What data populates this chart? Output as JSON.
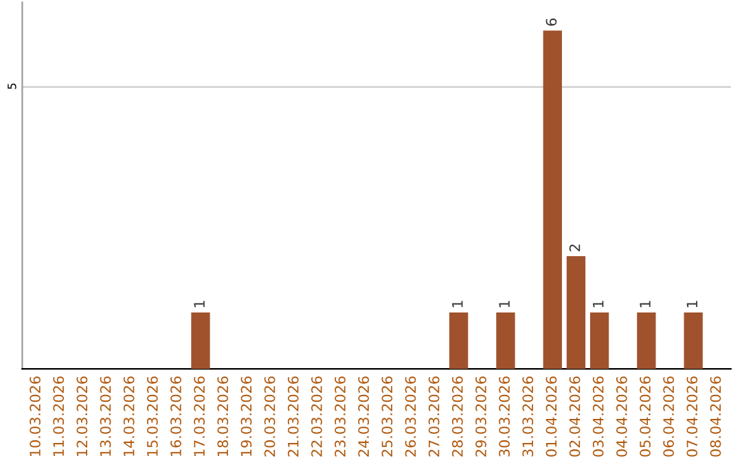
{
  "chart_data": {
    "type": "bar",
    "categories": [
      "10.03.2026",
      "11.03.2026",
      "12.03.2026",
      "13.03.2026",
      "14.03.2026",
      "15.03.2026",
      "16.03.2026",
      "17.03.2026",
      "18.03.2026",
      "19.03.2026",
      "20.03.2026",
      "21.03.2026",
      "22.03.2026",
      "23.03.2026",
      "24.03.2026",
      "25.03.2026",
      "26.03.2026",
      "27.03.2026",
      "28.03.2026",
      "29.03.2026",
      "30.03.2026",
      "31.03.2026",
      "01.04.2026",
      "02.04.2026",
      "03.04.2026",
      "04.04.2026",
      "05.04.2026",
      "06.04.2026",
      "07.04.2026",
      "08.04.2026"
    ],
    "values": [
      0,
      0,
      0,
      0,
      0,
      0,
      0,
      1,
      0,
      0,
      0,
      0,
      0,
      0,
      0,
      0,
      0,
      0,
      1,
      0,
      1,
      0,
      6,
      2,
      1,
      0,
      1,
      0,
      1,
      0
    ],
    "value_labels": [
      null,
      null,
      null,
      null,
      null,
      null,
      null,
      "1",
      null,
      null,
      null,
      null,
      null,
      null,
      null,
      null,
      null,
      null,
      "1",
      null,
      "1",
      null,
      "6",
      "2",
      "1",
      null,
      "1",
      null,
      "1",
      null
    ],
    "color": "#a0522d",
    "ylim": [
      0,
      6.5
    ],
    "yticks": [
      5
    ],
    "grid": "y"
  }
}
